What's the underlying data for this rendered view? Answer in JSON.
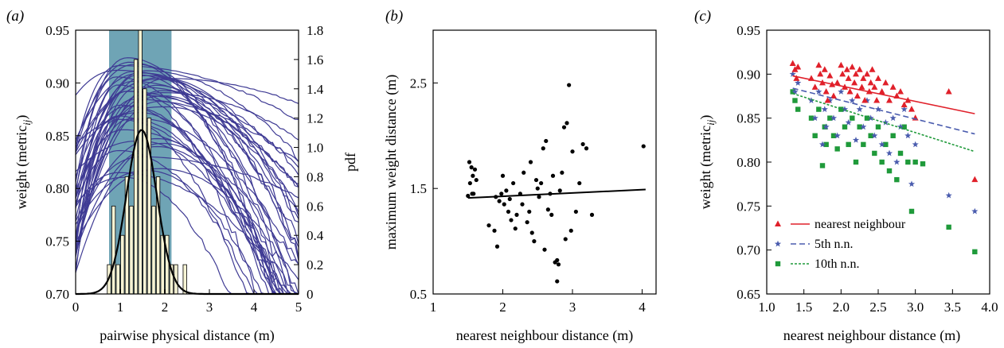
{
  "panels": {
    "a": {
      "label": "(a)"
    },
    "b": {
      "label": "(b)"
    },
    "c": {
      "label": "(c)"
    }
  },
  "colors": {
    "curves": "#3f3b94",
    "shade": "#6fa4b5",
    "hist_fill": "#f6f3d4",
    "fit": "#000000",
    "nearest": "#e0202a",
    "fifth": "#4a5cae",
    "tenth": "#1f9a3a"
  },
  "chart_data": [
    {
      "panel": "a",
      "type": "line",
      "xlabel": "pairwise physical distance (m)",
      "ylabel": "weight (metric",
      "ylabel_sub": "ij",
      "ylabel_close": ")",
      "y2label": "pdf",
      "xlim": [
        0,
        5
      ],
      "ylim": [
        0.7,
        0.95
      ],
      "y2lim": [
        0,
        1.8
      ],
      "xticks": [
        "0",
        "1",
        "2",
        "3",
        "4",
        "5"
      ],
      "yticks": [
        "0.70",
        "0.75",
        "0.80",
        "0.85",
        "0.90",
        "0.95"
      ],
      "y2ticks": [
        "0",
        "0.2",
        "0.4",
        "0.6",
        "0.8",
        "1.0",
        "1.2",
        "1.4",
        "1.6",
        "1.8"
      ],
      "shaded_range": [
        0.75,
        2.15
      ],
      "curve_count": 45,
      "curves_peak_x_range": [
        0.9,
        2.1
      ],
      "curves_peak_y_range": [
        0.8,
        0.925
      ],
      "histogram": {
        "bin_width": 0.1,
        "bins": [
          {
            "x": 0.75,
            "pdf": 0.2
          },
          {
            "x": 0.85,
            "pdf": 0.6
          },
          {
            "x": 0.95,
            "pdf": 0.2
          },
          {
            "x": 1.05,
            "pdf": 0.4
          },
          {
            "x": 1.15,
            "pdf": 0.8
          },
          {
            "x": 1.25,
            "pdf": 0.6
          },
          {
            "x": 1.35,
            "pdf": 1.6
          },
          {
            "x": 1.45,
            "pdf": 1.8
          },
          {
            "x": 1.55,
            "pdf": 1.4
          },
          {
            "x": 1.65,
            "pdf": 1.2
          },
          {
            "x": 1.75,
            "pdf": 0.6
          },
          {
            "x": 1.85,
            "pdf": 0.8
          },
          {
            "x": 1.95,
            "pdf": 0.4
          },
          {
            "x": 2.05,
            "pdf": 0.4
          },
          {
            "x": 2.15,
            "pdf": 0.2
          },
          {
            "x": 2.25,
            "pdf": 0.2
          },
          {
            "x": 2.45,
            "pdf": 0.2
          }
        ]
      },
      "fit_normal": {
        "mean": 1.48,
        "sd": 0.34,
        "peak_pdf": 1.12
      }
    },
    {
      "panel": "b",
      "type": "scatter",
      "xlabel": "nearest neighbour distance (m)",
      "ylabel": "maximum weight distance (m)",
      "xlim": [
        1,
        4.2
      ],
      "ylim": [
        0.5,
        3.0
      ],
      "xticks": [
        1,
        2,
        3,
        4
      ],
      "yticks": [
        0.5,
        1.5,
        2.5
      ],
      "points": [
        [
          1.52,
          1.75
        ],
        [
          1.55,
          1.7
        ],
        [
          1.57,
          1.62
        ],
        [
          1.6,
          1.68
        ],
        [
          1.53,
          1.55
        ],
        [
          1.56,
          1.45
        ],
        [
          1.5,
          1.43
        ],
        [
          1.58,
          1.45
        ],
        [
          1.62,
          1.58
        ],
        [
          1.8,
          1.15
        ],
        [
          1.88,
          1.1
        ],
        [
          1.9,
          1.42
        ],
        [
          1.92,
          0.95
        ],
        [
          1.95,
          1.38
        ],
        [
          1.98,
          1.45
        ],
        [
          2.0,
          1.62
        ],
        [
          2.02,
          1.35
        ],
        [
          2.05,
          1.48
        ],
        [
          2.08,
          1.28
        ],
        [
          2.1,
          1.4
        ],
        [
          2.12,
          1.2
        ],
        [
          2.15,
          1.55
        ],
        [
          2.18,
          1.12
        ],
        [
          2.2,
          1.25
        ],
        [
          2.25,
          1.45
        ],
        [
          2.28,
          1.35
        ],
        [
          2.3,
          1.65
        ],
        [
          2.35,
          1.18
        ],
        [
          2.38,
          1.28
        ],
        [
          2.4,
          1.75
        ],
        [
          2.42,
          1.08
        ],
        [
          2.45,
          1.0
        ],
        [
          2.48,
          1.58
        ],
        [
          2.5,
          1.5
        ],
        [
          2.52,
          1.42
        ],
        [
          2.55,
          1.55
        ],
        [
          2.58,
          1.88
        ],
        [
          2.6,
          0.92
        ],
        [
          2.62,
          1.95
        ],
        [
          2.65,
          1.3
        ],
        [
          2.68,
          1.45
        ],
        [
          2.7,
          1.25
        ],
        [
          2.72,
          1.62
        ],
        [
          2.75,
          0.8
        ],
        [
          2.78,
          0.82
        ],
        [
          2.8,
          0.78
        ],
        [
          2.82,
          1.48
        ],
        [
          2.85,
          1.65
        ],
        [
          2.88,
          2.08
        ],
        [
          2.9,
          1.02
        ],
        [
          2.92,
          2.12
        ],
        [
          2.95,
          2.48
        ],
        [
          2.98,
          1.1
        ],
        [
          3.0,
          1.85
        ],
        [
          3.05,
          1.28
        ],
        [
          3.1,
          1.55
        ],
        [
          3.15,
          1.92
        ],
        [
          3.2,
          1.88
        ],
        [
          3.28,
          1.25
        ],
        [
          2.78,
          0.62
        ],
        [
          4.02,
          1.9
        ]
      ],
      "fit_line": {
        "x": [
          1.5,
          4.05
        ],
        "y": [
          1.41,
          1.49
        ]
      }
    },
    {
      "panel": "c",
      "type": "scatter",
      "xlabel": "nearest neighbour distance (m)",
      "ylabel": "weight (metric",
      "ylabel_sub": "ij",
      "ylabel_close": ")",
      "xlim": [
        1.0,
        4.0
      ],
      "ylim": [
        0.65,
        0.95
      ],
      "xticks": [
        "1.0",
        "1.5",
        "2.0",
        "2.5",
        "3.0",
        "3.5",
        "4.0"
      ],
      "yticks": [
        "0.65",
        "0.70",
        "0.75",
        "0.80",
        "0.85",
        "0.90",
        "0.95"
      ],
      "legend_position": "bottom-left",
      "series": [
        {
          "name": "nearest neighbour",
          "marker": "triangle",
          "x": [
            1.35,
            1.38,
            1.4,
            1.42,
            1.6,
            1.65,
            1.7,
            1.72,
            1.75,
            1.78,
            1.8,
            1.82,
            1.85,
            1.88,
            1.9,
            1.95,
            2.0,
            2.02,
            2.05,
            2.08,
            2.1,
            2.12,
            2.15,
            2.18,
            2.2,
            2.22,
            2.25,
            2.28,
            2.3,
            2.32,
            2.35,
            2.38,
            2.4,
            2.42,
            2.45,
            2.48,
            2.5,
            2.55,
            2.6,
            2.65,
            2.7,
            2.75,
            2.8,
            2.85,
            2.9,
            2.95,
            3.0,
            3.45,
            3.8
          ],
          "y": [
            0.912,
            0.905,
            0.895,
            0.908,
            0.895,
            0.885,
            0.91,
            0.9,
            0.89,
            0.905,
            0.88,
            0.87,
            0.898,
            0.888,
            0.875,
            0.89,
            0.91,
            0.9,
            0.885,
            0.905,
            0.895,
            0.88,
            0.908,
            0.89,
            0.9,
            0.875,
            0.905,
            0.885,
            0.895,
            0.87,
            0.9,
            0.88,
            0.89,
            0.905,
            0.885,
            0.87,
            0.895,
            0.88,
            0.89,
            0.87,
            0.885,
            0.875,
            0.88,
            0.865,
            0.87,
            0.86,
            0.85,
            0.88,
            0.78
          ]
        },
        {
          "name": "5th n.n.",
          "marker": "star",
          "x": [
            1.35,
            1.38,
            1.42,
            1.6,
            1.65,
            1.7,
            1.75,
            1.78,
            1.8,
            1.85,
            1.9,
            1.95,
            2.0,
            2.05,
            2.1,
            2.15,
            2.2,
            2.25,
            2.3,
            2.35,
            2.4,
            2.45,
            2.5,
            2.55,
            2.6,
            2.65,
            2.7,
            2.75,
            2.8,
            2.85,
            2.9,
            2.95,
            3.0,
            3.45,
            3.8
          ],
          "y": [
            0.9,
            0.88,
            0.89,
            0.87,
            0.85,
            0.88,
            0.82,
            0.86,
            0.84,
            0.87,
            0.85,
            0.83,
            0.88,
            0.86,
            0.845,
            0.87,
            0.825,
            0.86,
            0.84,
            0.87,
            0.85,
            0.83,
            0.86,
            0.82,
            0.845,
            0.81,
            0.85,
            0.8,
            0.84,
            0.86,
            0.83,
            0.775,
            0.82,
            0.762,
            0.744
          ]
        },
        {
          "name": "10th n.n.",
          "marker": "square",
          "x": [
            1.35,
            1.38,
            1.42,
            1.6,
            1.65,
            1.7,
            1.75,
            1.78,
            1.8,
            1.85,
            1.9,
            1.95,
            2.0,
            2.05,
            2.1,
            2.15,
            2.2,
            2.25,
            2.3,
            2.35,
            2.4,
            2.45,
            2.5,
            2.55,
            2.6,
            2.65,
            2.7,
            2.75,
            2.8,
            2.85,
            2.9,
            2.95,
            3.0,
            3.1,
            3.45,
            3.8
          ],
          "y": [
            0.88,
            0.87,
            0.86,
            0.85,
            0.83,
            0.86,
            0.796,
            0.84,
            0.82,
            0.85,
            0.83,
            0.815,
            0.86,
            0.84,
            0.82,
            0.85,
            0.8,
            0.84,
            0.82,
            0.85,
            0.83,
            0.81,
            0.84,
            0.8,
            0.82,
            0.79,
            0.83,
            0.78,
            0.81,
            0.84,
            0.8,
            0.744,
            0.8,
            0.798,
            0.726,
            0.698
          ]
        }
      ],
      "fit_lines": [
        {
          "series": "nearest neighbour",
          "x": [
            1.35,
            3.8
          ],
          "y": [
            0.898,
            0.855
          ]
        },
        {
          "series": "5th n.n.",
          "x": [
            1.35,
            3.8
          ],
          "y": [
            0.884,
            0.832
          ]
        },
        {
          "series": "10th n.n.",
          "x": [
            1.35,
            3.8
          ],
          "y": [
            0.878,
            0.812
          ]
        }
      ]
    }
  ]
}
